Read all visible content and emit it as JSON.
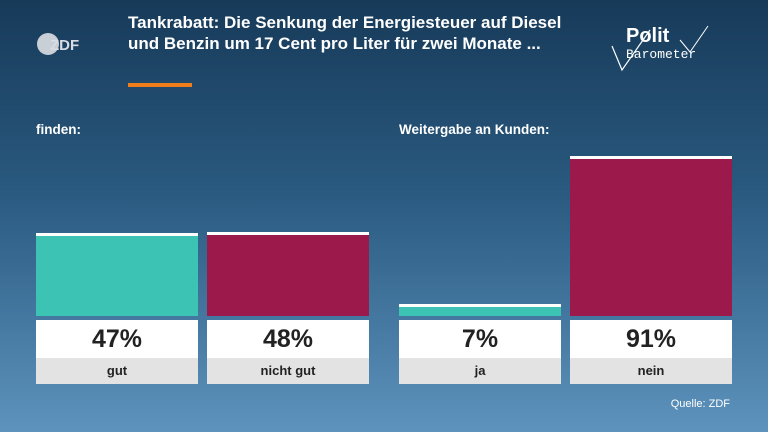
{
  "header": {
    "title": "Tankrabatt: Die Senkung der Energiesteuer auf Diesel und Benzin um 17 Cent pro Liter für zwei Monate ...",
    "logo_left_text": "ZDF",
    "logo_right_line1": "Polit",
    "logo_right_line2": "Barometer",
    "accent_color": "#f07c1a"
  },
  "colors": {
    "positive": "#3cc3b4",
    "negative": "#9c1a4b"
  },
  "chart_data": [
    {
      "type": "bar",
      "title": "finden:",
      "categories": [
        "gut",
        "nicht gut"
      ],
      "values": [
        47,
        48
      ],
      "value_labels": [
        "47%",
        "48%"
      ],
      "ylim": [
        0,
        100
      ],
      "bar_colors": [
        "#3cc3b4",
        "#9c1a4b"
      ],
      "grid": false
    },
    {
      "type": "bar",
      "title": "Weitergabe an Kunden:",
      "categories": [
        "ja",
        "nein"
      ],
      "values": [
        7,
        91
      ],
      "value_labels": [
        "7%",
        "91%"
      ],
      "ylim": [
        0,
        100
      ],
      "bar_colors": [
        "#3cc3b4",
        "#9c1a4b"
      ],
      "grid": false
    }
  ],
  "footer": {
    "source": "Quelle: ZDF"
  }
}
